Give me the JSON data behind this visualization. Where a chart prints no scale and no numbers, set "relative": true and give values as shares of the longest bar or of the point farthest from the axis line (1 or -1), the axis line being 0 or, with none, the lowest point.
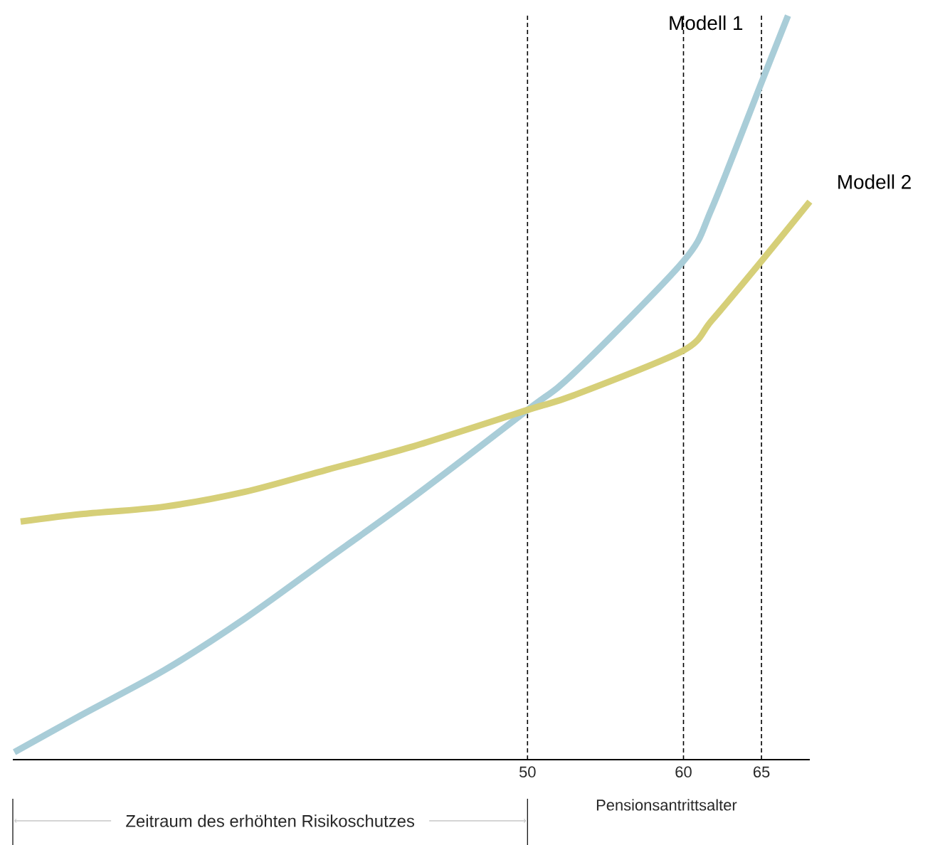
{
  "chart_data": {
    "type": "line",
    "relative": true,
    "xlabel": "Pensionsantrittsalter",
    "xlim": [
      17,
      68.1
    ],
    "xticks": [
      50,
      60,
      65
    ],
    "tick_labels": "x",
    "series": [
      {
        "name": "Modell 1",
        "color": "#a9cdd8",
        "x": [
          17.1,
          21.4,
          26.7,
          31.9,
          37.2,
          42.5,
          50,
          53,
          60,
          61.8,
          65,
          66.7
        ],
        "values": [
          0.01,
          0.06,
          0.12,
          0.19,
          0.27,
          0.35,
          0.47,
          0.52,
          0.67,
          0.74,
          0.91,
          1
        ]
      },
      {
        "name": "Modell 2",
        "color": "#d6cf78",
        "x": [
          17.5,
          21.4,
          26.7,
          31.9,
          37.2,
          42.5,
          50,
          53,
          60,
          61.8,
          65,
          68.1
        ],
        "values": [
          0.32,
          0.33,
          0.34,
          0.36,
          0.39,
          0.42,
          0.47,
          0.49,
          0.55,
          0.59,
          0.67,
          0.75
        ]
      }
    ],
    "ref_lines": [
      {
        "axis": "x",
        "value": 50,
        "color": "#000000",
        "line_style": "dashed"
      },
      {
        "axis": "x",
        "value": 60,
        "color": "#000000",
        "line_style": "dashed"
      },
      {
        "axis": "x",
        "value": 65,
        "color": "#000000",
        "line_style": "dashed"
      }
    ],
    "annotations": [
      "Zeitraum des erhöhten Risikoschutzes"
    ]
  }
}
